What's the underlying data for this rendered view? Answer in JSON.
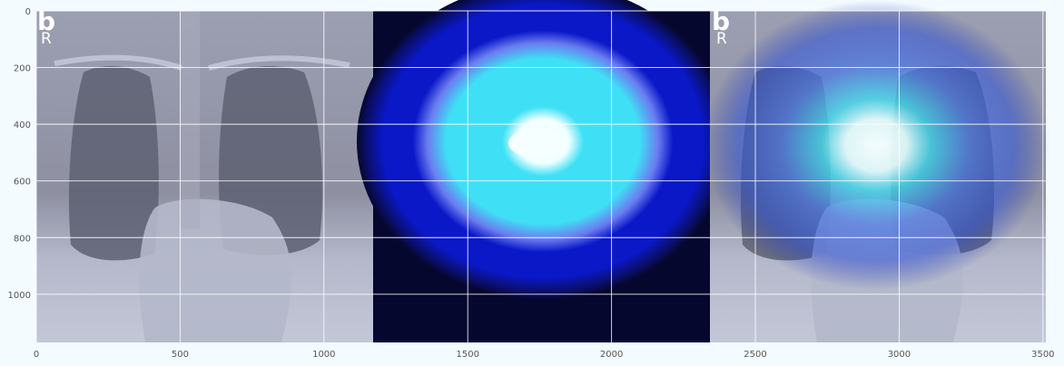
{
  "figure": {
    "panels": [
      {
        "letter": "b",
        "side": "R",
        "kind": "xray"
      },
      {
        "letter": "",
        "side": "",
        "kind": "heatmap"
      },
      {
        "letter": "b",
        "side": "R",
        "kind": "overlay"
      }
    ]
  },
  "chart_data": {
    "type": "heatmap",
    "x_extent": [
      0,
      3510
    ],
    "y_extent": [
      0,
      1170
    ],
    "y_inverted": true,
    "xticks": [
      0,
      500,
      1000,
      1500,
      2000,
      2500,
      3000,
      3500
    ],
    "yticks": [
      0,
      200,
      400,
      600,
      800,
      1000
    ],
    "grid": true,
    "grid_color": "#ffffff",
    "background_color": "#06072e",
    "colors": {
      "xray_dark": "#5d6072",
      "xray_mid": "#8e90a2",
      "xray_light": "#b8bccd",
      "heat_outer": "#0a18c8",
      "heat_mid": "#6a7cf0",
      "heat_inner": "#3fe0f5",
      "heat_core": "#f5ffff"
    }
  }
}
